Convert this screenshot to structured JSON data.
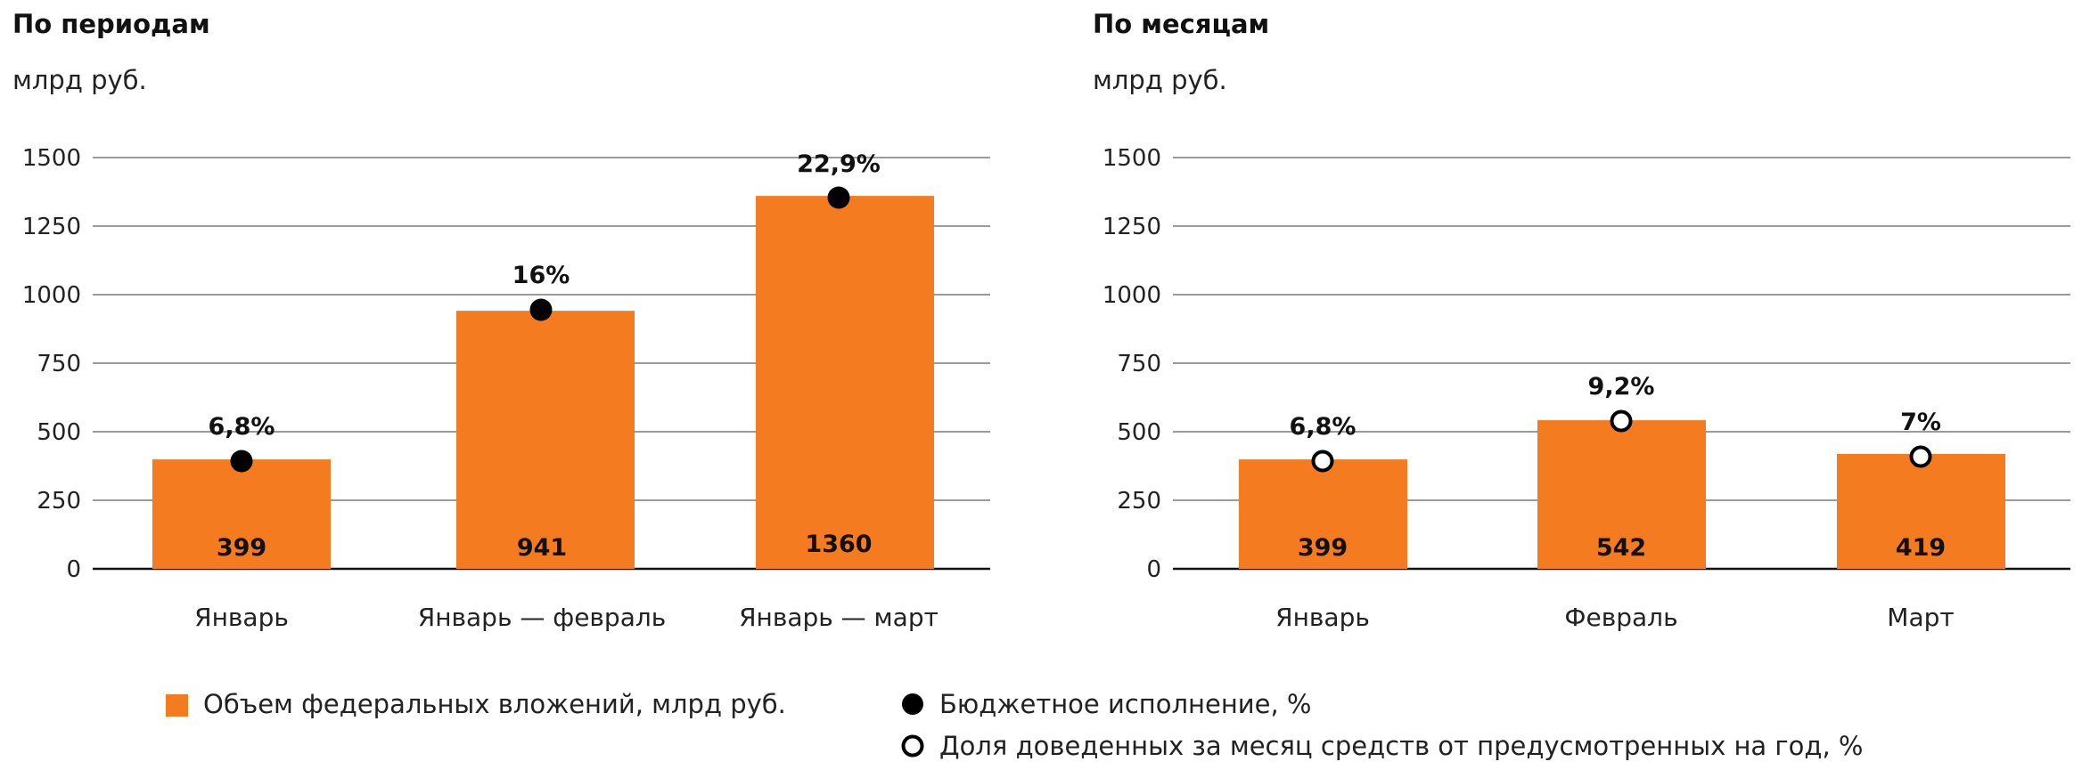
{
  "chart_data": [
    {
      "type": "bar",
      "title": "По периодам",
      "unit": "млрд руб.",
      "ylim": [
        0,
        1500
      ],
      "yticks": [
        "0",
        "250",
        "500",
        "750",
        "1000",
        "1250",
        "1500"
      ],
      "grid": true,
      "categories": [
        "Январь",
        "Январь — февраль",
        "Январь — март"
      ],
      "series": [
        {
          "name": "Объем федеральных вложений, млрд руб.",
          "type": "bar",
          "values": [
            399,
            941,
            1360
          ],
          "value_labels": [
            "399",
            "941",
            "1360"
          ]
        },
        {
          "name": "Бюджетное исполнение, %",
          "type": "marker",
          "marker": "filled",
          "values": [
            6.8,
            16,
            22.9
          ],
          "labels": [
            "6,8%",
            "16%",
            "22,9%"
          ]
        }
      ]
    },
    {
      "type": "bar",
      "title": "По месяцам",
      "unit": "млрд руб.",
      "ylim": [
        0,
        1500
      ],
      "yticks": [
        "0",
        "250",
        "500",
        "750",
        "1000",
        "1250",
        "1500"
      ],
      "grid": true,
      "categories": [
        "Январь",
        "Февраль",
        "Март"
      ],
      "series": [
        {
          "name": "Объем федеральных вложений, млрд руб.",
          "type": "bar",
          "values": [
            399,
            542,
            419
          ],
          "value_labels": [
            "399",
            "542",
            "419"
          ]
        },
        {
          "name": "Доля доведенных за месяц средств от предусмотренных на год, %",
          "type": "marker",
          "marker": "hollow",
          "values": [
            6.8,
            9.2,
            7
          ],
          "labels": [
            "6,8%",
            "9,2%",
            "7%"
          ]
        }
      ]
    }
  ],
  "legend": {
    "items": [
      {
        "label": "Объем федеральных вложений, млрд руб.",
        "marker": "square",
        "color": "#F47B20"
      },
      {
        "label": "Бюджетное исполнение, %",
        "marker": "filled-circle",
        "color": "#000000"
      },
      {
        "label": "Доля доведенных за месяц средств от предусмотренных на год, %",
        "marker": "hollow-circle",
        "color": "#000000"
      }
    ]
  },
  "colors": {
    "bar": "#F47B20",
    "grid": "#9B9B9B",
    "axis": "#111111",
    "text": "#111111",
    "marker": "#000000",
    "marker_fill_hollow": "#FFFFFF"
  }
}
